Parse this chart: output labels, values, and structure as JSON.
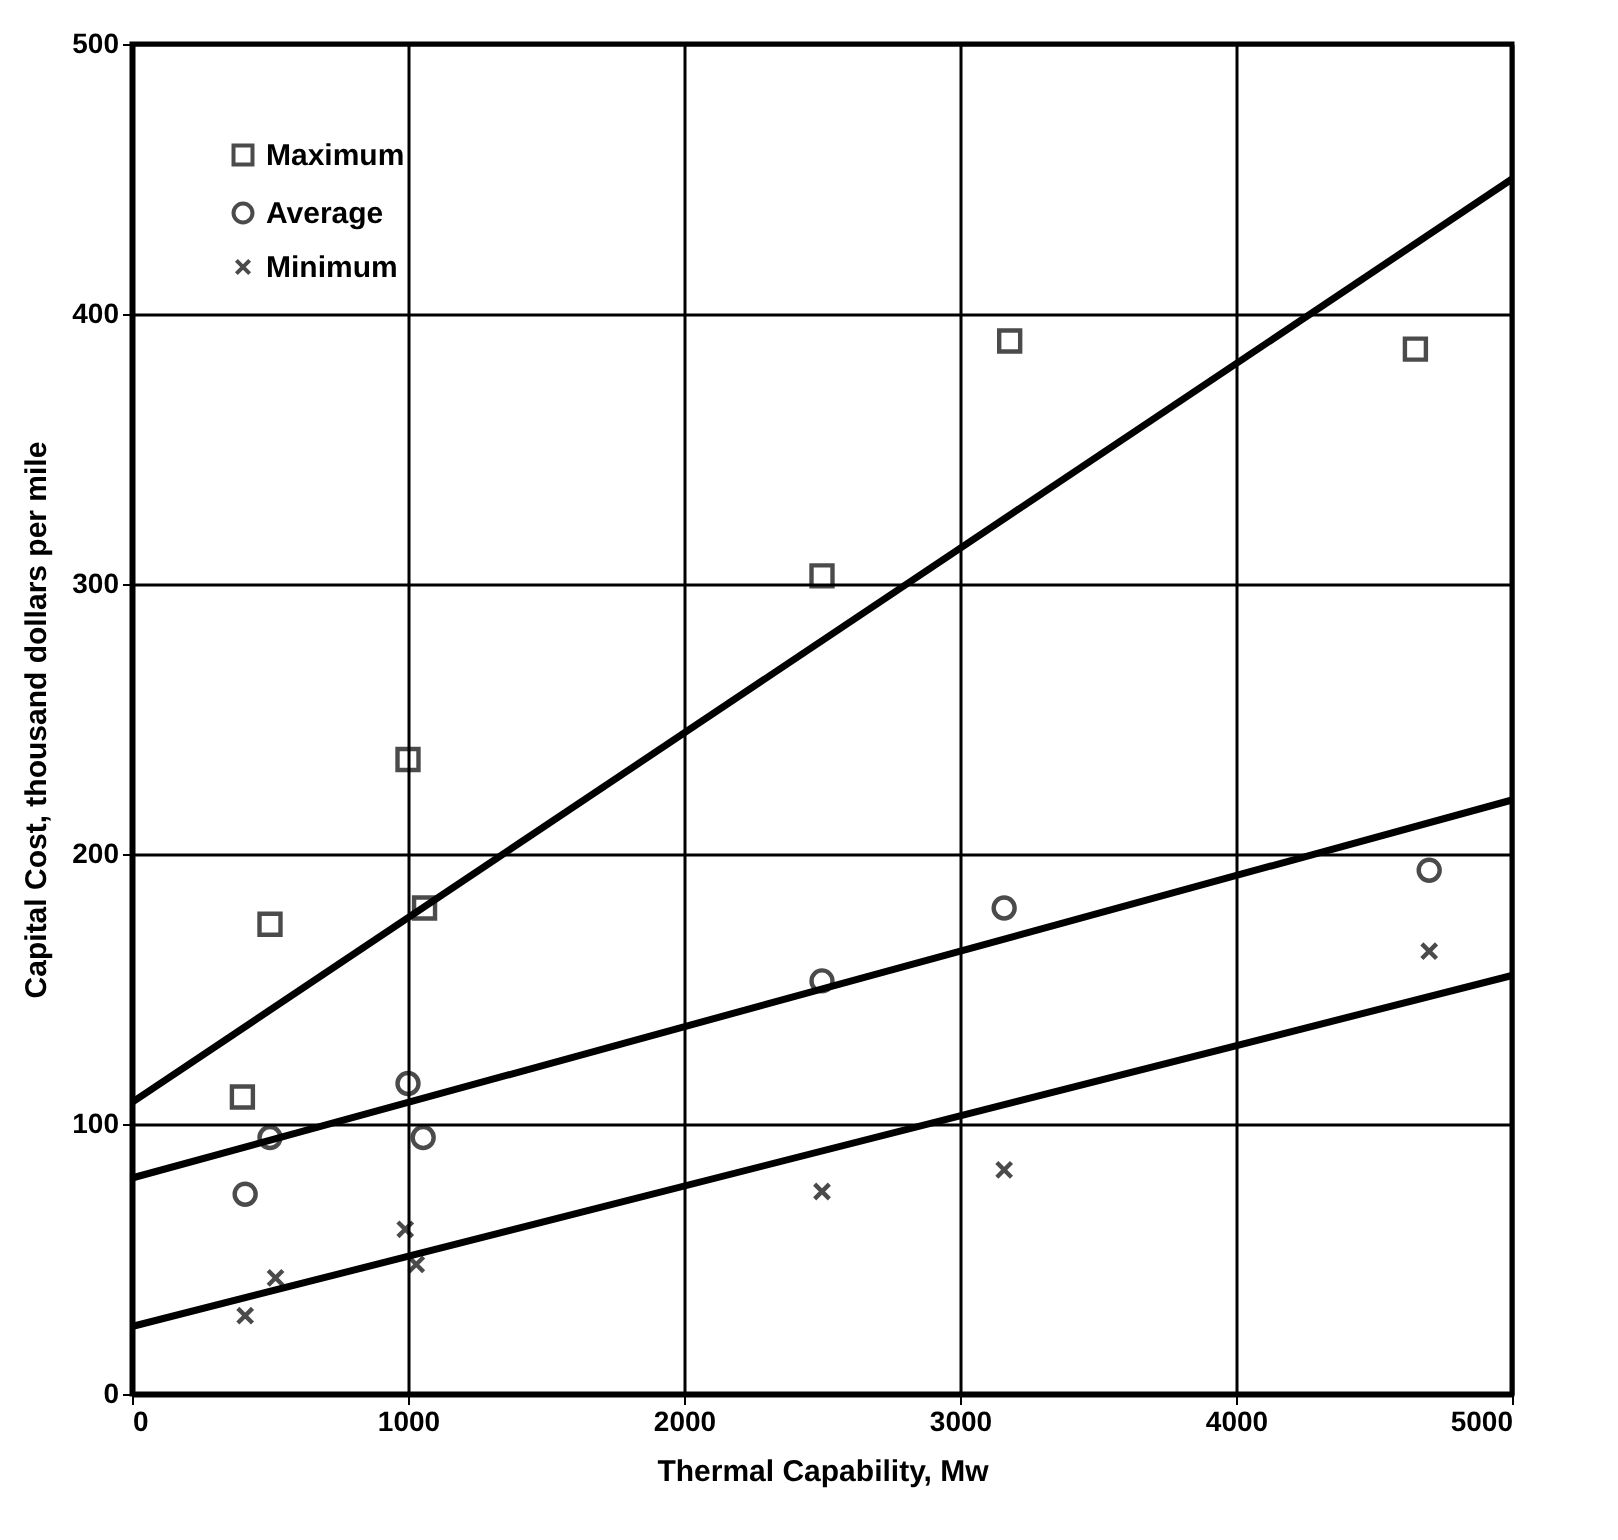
{
  "chart_data": {
    "type": "scatter",
    "xlabel": "Thermal Capability,  Mw",
    "ylabel": "Capital Cost, thousand dollars per mile",
    "xlim": [
      0,
      5000
    ],
    "xticks": [
      0,
      1000,
      2000,
      3000,
      4000,
      5000
    ],
    "ylim": [
      0,
      500
    ],
    "yticks": [
      0,
      100,
      200,
      300,
      400,
      500
    ],
    "grid": true,
    "legend": "top left",
    "series": [
      {
        "name": "Maximum",
        "marker": "square",
        "color": "#000000",
        "x": [
          400,
          500,
          1000,
          1060,
          2500,
          3180,
          4650
        ],
        "values": [
          110,
          174,
          235,
          180,
          303,
          390,
          387
        ]
      },
      {
        "name": "Average",
        "marker": "circle",
        "color": "#000000",
        "x": [
          410,
          500,
          1000,
          1055,
          2500,
          3160,
          4700
        ],
        "values": [
          74,
          95,
          115,
          95,
          153,
          180,
          194
        ]
      },
      {
        "name": "Minimum",
        "marker": "cross",
        "color": "#000000",
        "x": [
          410,
          520,
          990,
          1030,
          2500,
          3160,
          4700
        ],
        "values": [
          29,
          43,
          61,
          48,
          75,
          83,
          164
        ]
      },
      {
        "type": "line",
        "color": "#000000",
        "x": [
          0,
          5000
        ],
        "values": [
          108,
          450
        ]
      },
      {
        "type": "line",
        "color": "#000000",
        "x": [
          0,
          5000
        ],
        "values": [
          80,
          220
        ]
      },
      {
        "type": "line",
        "color": "#000000",
        "x": [
          0,
          5000
        ],
        "values": [
          25,
          155
        ]
      }
    ]
  }
}
